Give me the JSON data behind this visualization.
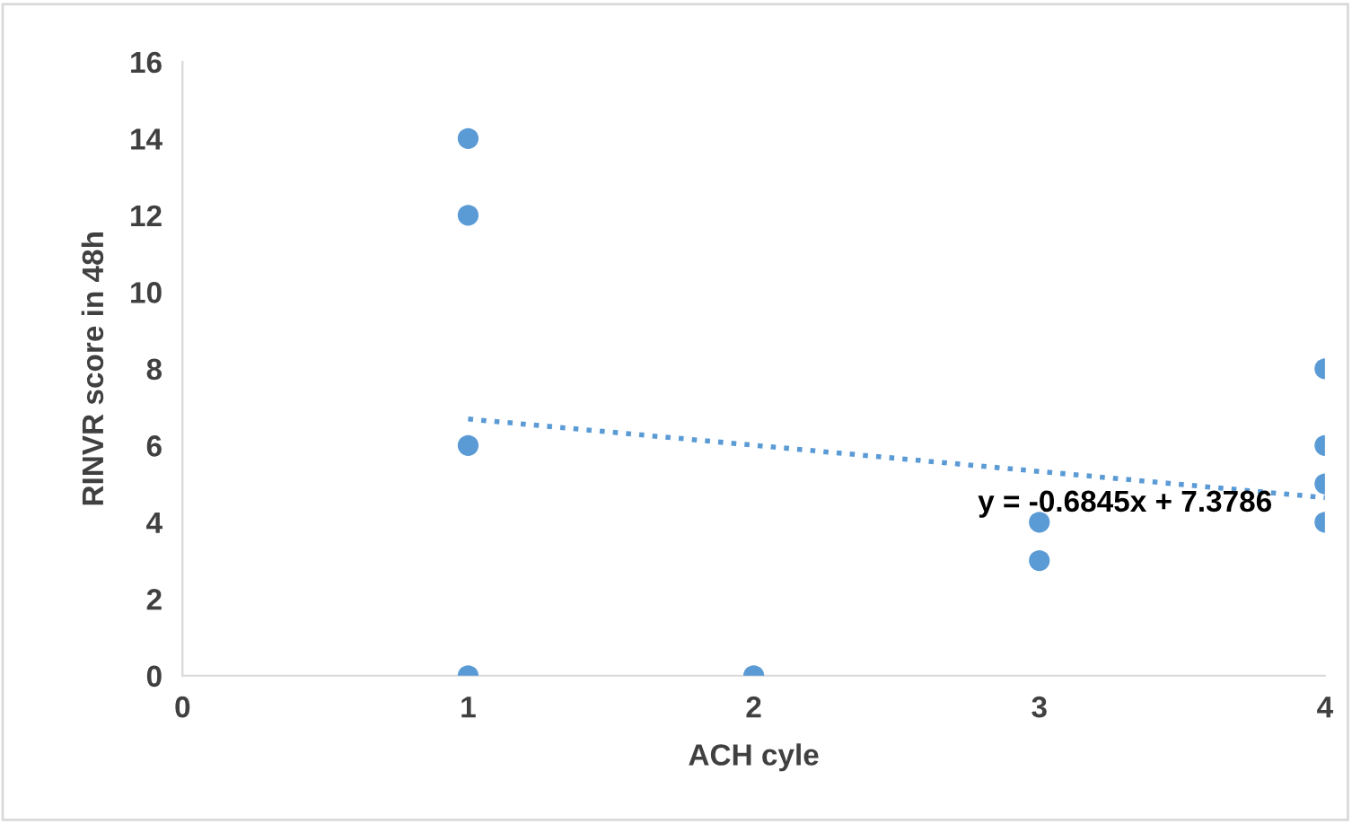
{
  "chart_data": {
    "type": "scatter",
    "xlabel": "ACH cyle",
    "ylabel": "RINVR score in 48h",
    "xlim": [
      0,
      4
    ],
    "xticks": [
      0,
      1,
      2,
      3,
      4
    ],
    "ylim": [
      0,
      16
    ],
    "yticks": [
      0,
      2,
      4,
      6,
      8,
      10,
      12,
      14,
      16
    ],
    "grid": false,
    "legend": false,
    "series": [
      {
        "marker": "circle",
        "color": "#5b9bd5",
        "x": [
          1,
          1,
          1,
          1,
          2,
          3,
          3,
          4,
          4,
          4,
          4
        ],
        "values": [
          14,
          12,
          6,
          0,
          0,
          4,
          3,
          8,
          6,
          5,
          4
        ]
      },
      {
        "type": "line",
        "color": "#5b9bd5",
        "line_style": "dotted",
        "x": [
          1,
          4
        ],
        "values": [
          6.69,
          4.64
        ]
      }
    ],
    "annotations": [
      "y = -0.6845x + 7.3786"
    ]
  }
}
